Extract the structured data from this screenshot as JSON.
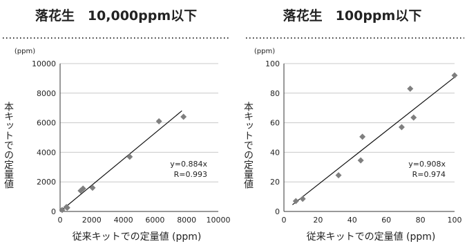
{
  "chart_data": [
    {
      "type": "scatter",
      "title": "落花生　10,000ppm以下",
      "xlabel": "従来キットでの定量値 (ppm)",
      "ylabel": "本キットでの定量値",
      "unit_label": "(ppm)",
      "xlim": [
        0,
        10000
      ],
      "ylim": [
        0,
        10000
      ],
      "x_ticks": [
        0,
        2000,
        4000,
        6000,
        8000,
        10000
      ],
      "y_ticks": [
        0,
        2000,
        4000,
        6000,
        8000,
        10000
      ],
      "grid": "horizontal",
      "marker_color": "#7f7f7f",
      "points": [
        {
          "x": 130,
          "y": 100
        },
        {
          "x": 400,
          "y": 300
        },
        {
          "x": 450,
          "y": 250
        },
        {
          "x": 1300,
          "y": 1400
        },
        {
          "x": 1450,
          "y": 1550
        },
        {
          "x": 2050,
          "y": 1600
        },
        {
          "x": 4400,
          "y": 3700
        },
        {
          "x": 6250,
          "y": 6100
        },
        {
          "x": 7800,
          "y": 6400
        }
      ],
      "trendline": {
        "slope": 0.884,
        "x_range": [
          0,
          7700
        ]
      },
      "equation": "y=0.884x",
      "r_value": "R=0.993"
    },
    {
      "type": "scatter",
      "title": "落花生　100ppm以下",
      "xlabel": "従来キットでの定量値 (ppm)",
      "ylabel": "本キットでの定量値",
      "unit_label": "(ppm)",
      "xlim": [
        0,
        100
      ],
      "ylim": [
        0,
        100
      ],
      "x_ticks": [
        0,
        20,
        40,
        60,
        80,
        100
      ],
      "y_ticks": [
        0,
        20,
        40,
        60,
        80,
        100
      ],
      "grid": "horizontal",
      "marker_color": "#7f7f7f",
      "points": [
        {
          "x": 7,
          "y": 7
        },
        {
          "x": 11,
          "y": 8.5
        },
        {
          "x": 32,
          "y": 24.5
        },
        {
          "x": 45,
          "y": 34.5
        },
        {
          "x": 46,
          "y": 50.5
        },
        {
          "x": 69,
          "y": 57
        },
        {
          "x": 74,
          "y": 83
        },
        {
          "x": 76,
          "y": 63.5
        },
        {
          "x": 100,
          "y": 92
        }
      ],
      "trendline": {
        "slope": 0.908,
        "x_range": [
          5,
          100
        ]
      },
      "equation": "y=0.908x",
      "r_value": "R=0.974"
    }
  ]
}
